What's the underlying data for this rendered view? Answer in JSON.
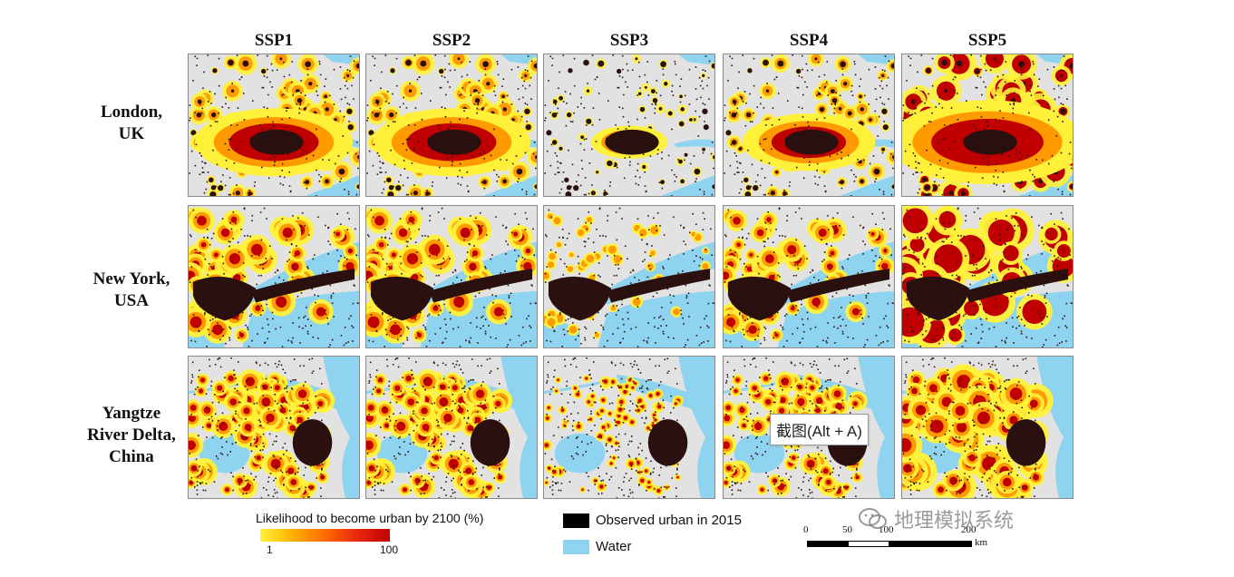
{
  "columns": [
    "SSP1",
    "SSP2",
    "SSP3",
    "SSP4",
    "SSP5"
  ],
  "rows": [
    {
      "line1": "London,",
      "line2": "UK",
      "line3": ""
    },
    {
      "line1": "New York,",
      "line2": "USA",
      "line3": ""
    },
    {
      "line1": "Yangtze",
      "line2": "River Delta,",
      "line3": "China"
    }
  ],
  "colors": {
    "land": "#e2e2e2",
    "water": "#8ed3ef",
    "urban": "#2b1010",
    "low_likelihood": "#fff13a",
    "mid_likelihood": "#ff9a00",
    "high_likelihood": "#c00000"
  },
  "legend": {
    "likelihood_title": "Likelihood to become urban by 2100 (%)",
    "likelihood_min": "1",
    "likelihood_max": "100",
    "urban_label": "Observed urban in 2015",
    "water_label": "Water"
  },
  "scale_bar": {
    "ticks": [
      "0",
      "50",
      "100",
      "200"
    ],
    "unit": "km"
  },
  "tooltip": {
    "text": "截图(Alt + A)"
  },
  "watermark": {
    "text": "地理模拟系统",
    "icon": "wechat-icon"
  }
}
